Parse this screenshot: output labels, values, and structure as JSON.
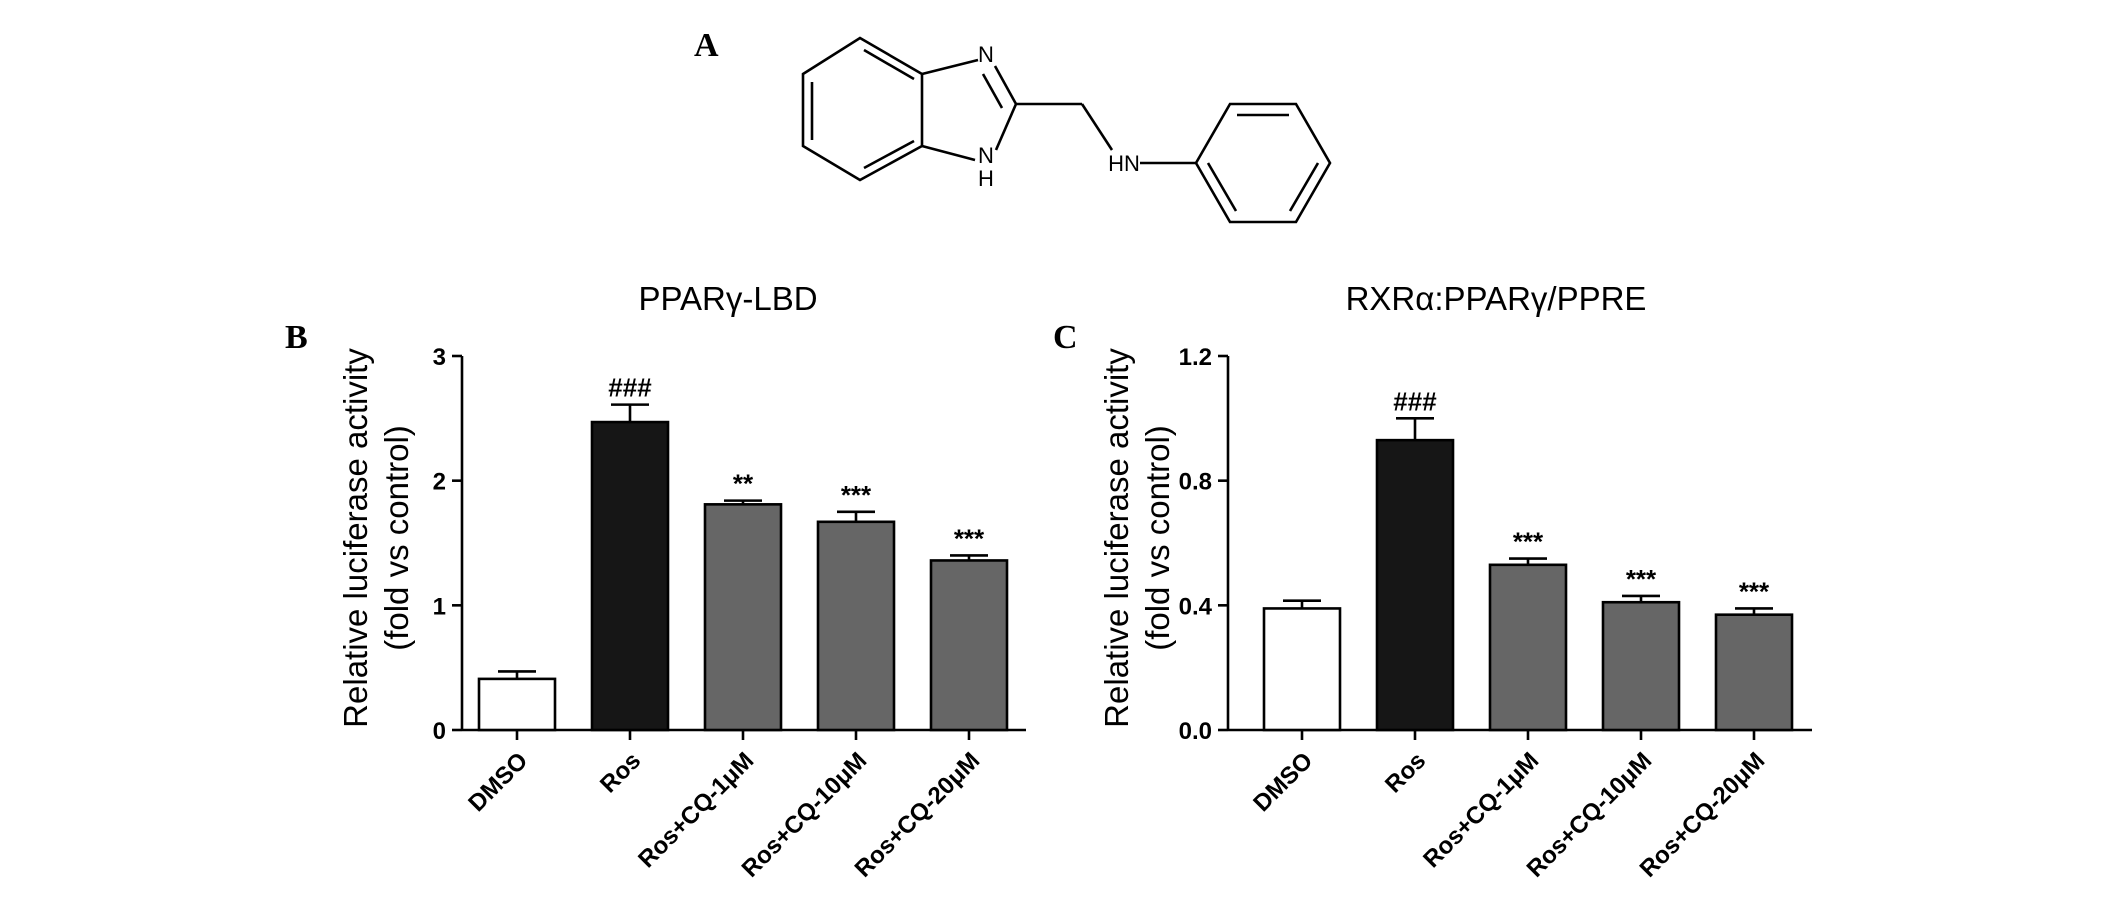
{
  "panel_a": {
    "letter": "A",
    "atoms": {
      "n": "N",
      "nh_ring": "N",
      "h_ring": "H",
      "nh": "HN"
    }
  },
  "chart_data": [
    {
      "type": "bar",
      "panel_letter": "B",
      "title": "PPARγ-LBD",
      "ylabel_line1": "Relative luciferase activity",
      "ylabel_line2": "(fold vs control)",
      "categories": [
        "DMSO",
        "Ros",
        "Ros+CQ-1μM",
        "Ros+CQ-10μM",
        "Ros+CQ-20μM"
      ],
      "values": [
        0.41,
        2.47,
        1.81,
        1.67,
        1.36
      ],
      "errors": [
        0.06,
        0.14,
        0.03,
        0.08,
        0.04
      ],
      "annotations": [
        "",
        "###",
        "**",
        "***",
        "***"
      ],
      "bar_colors": [
        "#ffffff",
        "#161616",
        "#666666",
        "#666666",
        "#666666"
      ],
      "ylim": [
        0,
        3
      ],
      "yticks": [
        "0",
        "1",
        "2",
        "3"
      ],
      "grid": false
    },
    {
      "type": "bar",
      "panel_letter": "C",
      "title": "RXRα:PPARγ/PPRE",
      "ylabel_line1": "Relative luciferase activity",
      "ylabel_line2": "(fold vs control)",
      "categories": [
        "DMSO",
        "Ros",
        "Ros+CQ-1μM",
        "Ros+CQ-10μM",
        "Ros+CQ-20μM"
      ],
      "values": [
        0.39,
        0.93,
        0.53,
        0.41,
        0.37
      ],
      "errors": [
        0.025,
        0.07,
        0.02,
        0.02,
        0.02
      ],
      "annotations": [
        "",
        "###",
        "***",
        "***",
        "***"
      ],
      "bar_colors": [
        "#ffffff",
        "#161616",
        "#666666",
        "#666666",
        "#666666"
      ],
      "ylim": [
        0,
        1.2
      ],
      "yticks": [
        "0.0",
        "0.4",
        "0.8",
        "1.2"
      ],
      "grid": false
    }
  ]
}
